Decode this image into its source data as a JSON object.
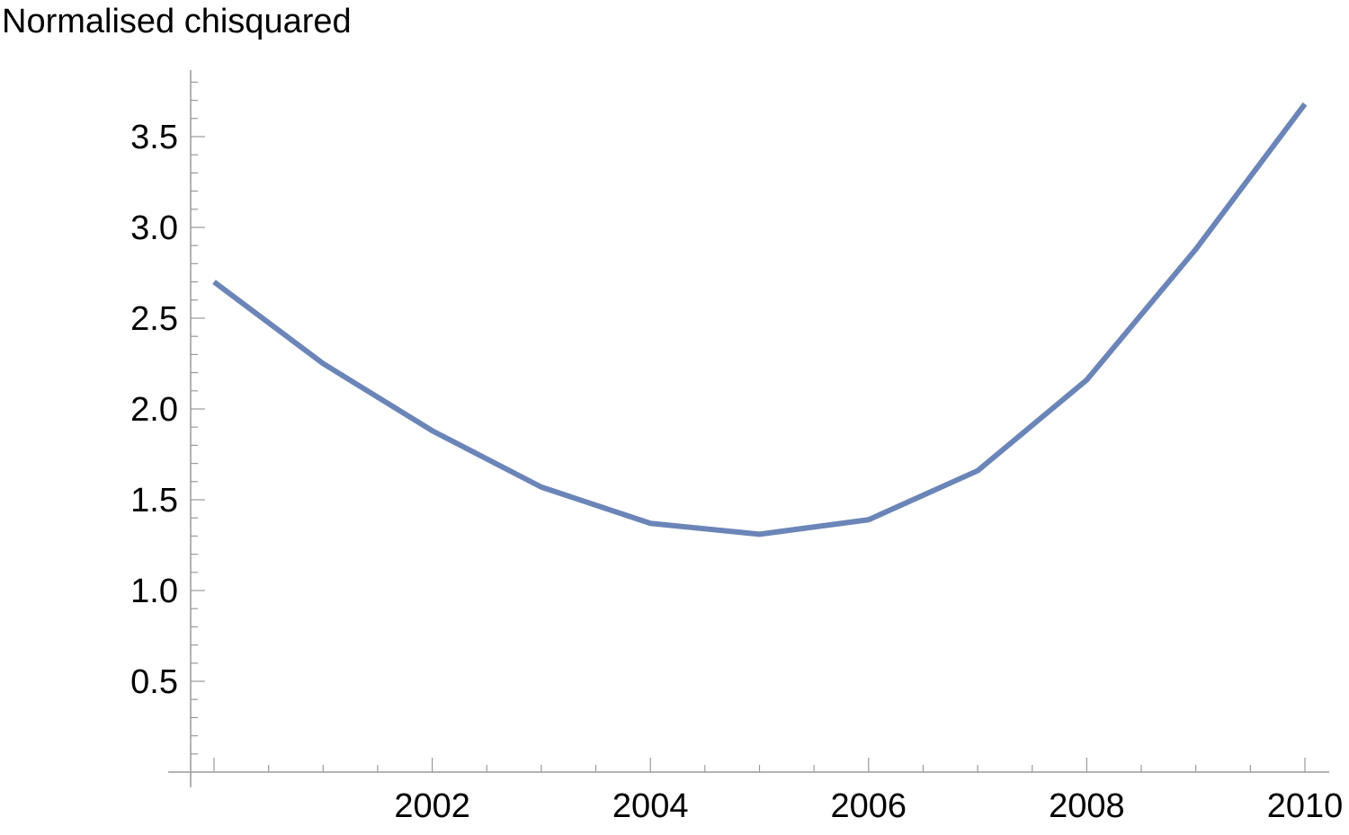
{
  "chart_data": {
    "type": "line",
    "title": "",
    "xlabel": "",
    "ylabel": "Normalised chisquared",
    "x": [
      2000,
      2001,
      2002,
      2003,
      2004,
      2005,
      2006,
      2007,
      2008,
      2009,
      2010
    ],
    "series": [
      {
        "values": [
          2.7,
          2.25,
          1.88,
          1.57,
          1.37,
          1.31,
          1.39,
          1.66,
          2.16,
          2.88,
          3.68
        ]
      }
    ],
    "xlim": [
      1999.8,
      2010.2
    ],
    "ylim": [
      0,
      3.85
    ],
    "x_ticks": [
      2002,
      2004,
      2006,
      2008,
      2010
    ],
    "x_tick_labels": [
      "2002",
      "2004",
      "2006",
      "2008",
      "2010"
    ],
    "y_ticks": [
      0.5,
      1.0,
      1.5,
      2.0,
      2.5,
      3.0,
      3.5
    ],
    "y_tick_labels": [
      "0.5",
      "1.0",
      "1.5",
      "2.0",
      "2.5",
      "3.0",
      "3.5"
    ],
    "grid": false,
    "colors": {
      "line": "#6b85b8",
      "axis": "#9a9a9a",
      "text": "#000000"
    }
  }
}
